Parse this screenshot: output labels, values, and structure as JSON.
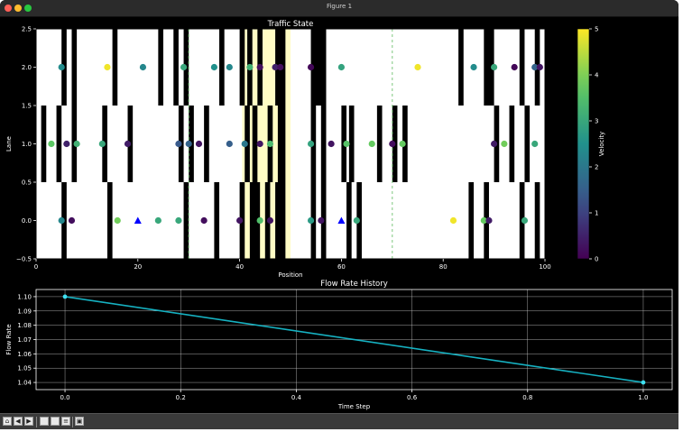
{
  "window": {
    "title": "Figure 1"
  },
  "colors": {
    "highlight": "#fffcc5",
    "flow_line": "#16b1c1",
    "stop": "#000000"
  },
  "toolbar": {
    "icons": [
      "home-icon",
      "back-icon",
      "forward-icon",
      "pan-icon",
      "zoom-icon",
      "configure-icon",
      "save-icon"
    ]
  },
  "chart_data": [
    {
      "type": "scatter",
      "title": "Traffic State",
      "xlabel": "Position",
      "ylabel": "Lane",
      "xlim": [
        0,
        100
      ],
      "ylim": [
        -0.5,
        2.5
      ],
      "xticks": [
        0,
        20,
        40,
        60,
        80,
        100
      ],
      "xtick_labels": [
        "0",
        "20",
        "40",
        "60",
        "80",
        "100"
      ],
      "yticks": [
        -0.5,
        0.0,
        0.5,
        1.0,
        1.5,
        2.0,
        2.5
      ],
      "ytick_labels": [
        "−0.5",
        "0.0",
        "0.5",
        "1.0",
        "1.5",
        "2.0",
        "2.5"
      ],
      "highlight_region": [
        40.5,
        50
      ],
      "dashed_lines_x": [
        30,
        70
      ],
      "stopped_bands": {
        "lane2": [
          [
            5,
            6
          ],
          [
            7,
            8
          ],
          [
            15,
            16
          ],
          [
            24,
            25
          ],
          [
            27,
            28
          ],
          [
            29,
            30
          ],
          [
            36,
            37
          ],
          [
            40,
            41
          ],
          [
            41.5,
            42.5
          ],
          [
            43.5,
            44.5
          ],
          [
            47,
            49
          ],
          [
            54,
            57
          ],
          [
            83,
            84
          ],
          [
            88,
            90
          ],
          [
            95,
            96
          ],
          [
            98,
            99
          ]
        ],
        "lane1": [
          [
            1,
            2
          ],
          [
            4,
            5
          ],
          [
            7,
            8
          ],
          [
            13,
            14
          ],
          [
            18,
            19
          ],
          [
            28,
            29
          ],
          [
            30,
            31
          ],
          [
            33,
            34
          ],
          [
            41,
            42
          ],
          [
            42.5,
            43.5
          ],
          [
            45.5,
            46.5
          ],
          [
            47.5,
            49
          ],
          [
            54,
            55
          ],
          [
            56,
            57
          ],
          [
            60,
            61
          ],
          [
            61.5,
            62.5
          ],
          [
            67,
            68
          ],
          [
            70,
            71
          ],
          [
            72,
            73
          ],
          [
            90,
            91
          ],
          [
            93,
            94
          ],
          [
            96,
            97
          ]
        ],
        "lane0": [
          [
            5,
            6
          ],
          [
            14,
            15
          ],
          [
            29,
            30
          ],
          [
            35,
            36
          ],
          [
            40,
            41
          ],
          [
            42,
            44
          ],
          [
            45,
            46
          ],
          [
            47,
            49
          ],
          [
            54,
            55
          ],
          [
            56,
            57
          ],
          [
            61,
            62
          ],
          [
            63,
            64
          ],
          [
            85,
            86
          ],
          [
            88,
            89
          ],
          [
            95,
            96
          ],
          [
            98,
            99
          ]
        ]
      },
      "colorbar": {
        "label": "Velocity",
        "range": [
          0,
          5
        ],
        "ticks": [
          "0",
          "1",
          "2",
          "3",
          "4",
          "5"
        ]
      },
      "points": [
        {
          "x": 5,
          "lane": 2,
          "v": 2.4
        },
        {
          "x": 14,
          "lane": 2,
          "v": 4.9
        },
        {
          "x": 21,
          "lane": 2,
          "v": 2.3
        },
        {
          "x": 29,
          "lane": 2,
          "v": 3.0
        },
        {
          "x": 35,
          "lane": 2,
          "v": 2.5
        },
        {
          "x": 38,
          "lane": 2,
          "v": 2.3
        },
        {
          "x": 42,
          "lane": 2,
          "v": 3.2
        },
        {
          "x": 44,
          "lane": 2,
          "v": 0.2
        },
        {
          "x": 47,
          "lane": 2,
          "v": 0.5
        },
        {
          "x": 48,
          "lane": 2,
          "v": 0.2
        },
        {
          "x": 54,
          "lane": 2,
          "v": 0.1
        },
        {
          "x": 60,
          "lane": 2,
          "v": 2.9
        },
        {
          "x": 75,
          "lane": 2,
          "v": 4.9
        },
        {
          "x": 86,
          "lane": 2,
          "v": 2.4
        },
        {
          "x": 90,
          "lane": 2,
          "v": 3.0
        },
        {
          "x": 94,
          "lane": 2,
          "v": 0.1
        },
        {
          "x": 98,
          "lane": 2,
          "v": 1.6
        },
        {
          "x": 99,
          "lane": 2,
          "v": 0.3
        },
        {
          "x": 3,
          "lane": 1,
          "v": 3.7
        },
        {
          "x": 6,
          "lane": 1,
          "v": 0.5
        },
        {
          "x": 8,
          "lane": 1,
          "v": 3.2
        },
        {
          "x": 13,
          "lane": 1,
          "v": 3.0
        },
        {
          "x": 18,
          "lane": 1,
          "v": 0.4
        },
        {
          "x": 28,
          "lane": 1,
          "v": 1.4
        },
        {
          "x": 30,
          "lane": 1,
          "v": 1.6
        },
        {
          "x": 32,
          "lane": 1,
          "v": 0.3
        },
        {
          "x": 38,
          "lane": 1,
          "v": 1.5
        },
        {
          "x": 41,
          "lane": 1,
          "v": 2.0
        },
        {
          "x": 44,
          "lane": 1,
          "v": 0.3
        },
        {
          "x": 46,
          "lane": 1,
          "v": 3.4
        },
        {
          "x": 54,
          "lane": 1,
          "v": 2.9
        },
        {
          "x": 58,
          "lane": 1,
          "v": 0.3
        },
        {
          "x": 61,
          "lane": 1,
          "v": 3.6
        },
        {
          "x": 66,
          "lane": 1,
          "v": 3.8
        },
        {
          "x": 70,
          "lane": 1,
          "v": 0.2
        },
        {
          "x": 72,
          "lane": 1,
          "v": 3.8
        },
        {
          "x": 90,
          "lane": 1,
          "v": 0.4
        },
        {
          "x": 92,
          "lane": 1,
          "v": 3.9
        },
        {
          "x": 98,
          "lane": 1,
          "v": 3.0
        },
        {
          "x": 5,
          "lane": 0,
          "v": 2.3
        },
        {
          "x": 7,
          "lane": 0,
          "v": 0.2
        },
        {
          "x": 16,
          "lane": 0,
          "v": 3.9
        },
        {
          "x": 24,
          "lane": 0,
          "v": 3.0
        },
        {
          "x": 28,
          "lane": 0,
          "v": 3.0
        },
        {
          "x": 33,
          "lane": 0,
          "v": 0.2
        },
        {
          "x": 40,
          "lane": 0,
          "v": 0.3
        },
        {
          "x": 44,
          "lane": 0,
          "v": 3.5
        },
        {
          "x": 46,
          "lane": 0,
          "v": 0.3
        },
        {
          "x": 54,
          "lane": 0,
          "v": 2.7
        },
        {
          "x": 56,
          "lane": 0,
          "v": 0.3
        },
        {
          "x": 63,
          "lane": 0,
          "v": 3.0
        },
        {
          "x": 82,
          "lane": 0,
          "v": 4.9
        },
        {
          "x": 88,
          "lane": 0,
          "v": 3.8
        },
        {
          "x": 89,
          "lane": 0,
          "v": 0.4
        },
        {
          "x": 96,
          "lane": 0,
          "v": 3.0
        }
      ],
      "triangles": [
        {
          "x": 20,
          "lane": 0
        },
        {
          "x": 60,
          "lane": 0
        }
      ]
    },
    {
      "type": "line",
      "title": "Flow Rate History",
      "xlabel": "Time Step",
      "ylabel": "Flow Rate",
      "xlim": [
        -0.05,
        1.05
      ],
      "ylim": [
        1.035,
        1.105
      ],
      "xticks": [
        0.0,
        0.2,
        0.4,
        0.6,
        0.8,
        1.0
      ],
      "xtick_labels": [
        "0.0",
        "0.2",
        "0.4",
        "0.6",
        "0.8",
        "1.0"
      ],
      "yticks": [
        1.04,
        1.05,
        1.06,
        1.07,
        1.08,
        1.09,
        1.1
      ],
      "ytick_labels": [
        "1.04",
        "1.05",
        "1.06",
        "1.07",
        "1.08",
        "1.09",
        "1.10"
      ],
      "grid": true,
      "x": [
        0.0,
        1.0
      ],
      "y": [
        1.1,
        1.04
      ]
    }
  ]
}
